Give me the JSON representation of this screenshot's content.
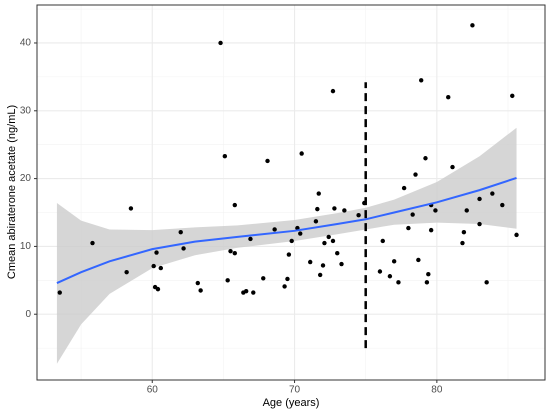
{
  "chart_data": {
    "type": "scatter",
    "x_label": "Age (years)",
    "y_label": "Cmean abiraterone acetate (ng/mL)",
    "xlim": [
      51.9,
      87.6
    ],
    "ylim": [
      -9.7,
      45.6
    ],
    "xticks": [
      60,
      70,
      80
    ],
    "yticks": [
      0,
      10,
      20,
      30,
      40
    ],
    "xminor": [
      55,
      65,
      75,
      85
    ],
    "yminor": [
      -5,
      5,
      15,
      25,
      35,
      45
    ],
    "grid": true,
    "point_color": "#000000",
    "x": [
      53.5,
      55.8,
      58.2,
      58.5,
      60.1,
      60.3,
      60.2,
      60.4,
      60.6,
      62.0,
      62.2,
      63.2,
      63.4,
      64.8,
      65.1,
      65.3,
      65.5,
      65.8,
      65.8,
      66.4,
      66.6,
      66.9,
      67.1,
      67.8,
      68.1,
      68.6,
      69.3,
      69.5,
      69.6,
      69.8,
      70.2,
      70.4,
      70.5,
      71.1,
      71.5,
      71.6,
      71.7,
      71.8,
      72.0,
      72.1,
      72.4,
      72.7,
      72.7,
      72.8,
      73.0,
      73.3,
      73.5,
      74.5,
      74.9,
      76.0,
      76.2,
      76.7,
      77.0,
      77.3,
      77.7,
      78.0,
      78.3,
      78.5,
      78.7,
      78.9,
      79.2,
      79.3,
      79.4,
      79.6,
      79.6,
      79.9,
      80.8,
      81.1,
      81.8,
      81.9,
      82.1,
      82.5,
      83.0,
      83.0,
      83.5,
      83.9,
      84.6,
      85.3,
      85.6
    ],
    "values": [
      3.2,
      10.5,
      6.2,
      15.6,
      7.1,
      9.1,
      4.0,
      3.7,
      6.8,
      12.1,
      9.7,
      4.6,
      3.5,
      40.0,
      23.3,
      5.0,
      9.3,
      9.0,
      16.1,
      3.2,
      3.4,
      11.1,
      3.2,
      5.3,
      22.6,
      12.5,
      4.1,
      5.2,
      8.8,
      10.8,
      12.7,
      11.9,
      23.7,
      7.7,
      13.7,
      15.5,
      17.8,
      5.8,
      7.2,
      10.5,
      11.4,
      10.8,
      32.9,
      15.6,
      9.0,
      7.4,
      15.3,
      14.6,
      16.4,
      6.3,
      10.8,
      5.6,
      7.8,
      4.7,
      18.6,
      12.7,
      14.7,
      20.6,
      8.0,
      34.5,
      23.0,
      4.7,
      5.9,
      12.4,
      16.1,
      15.3,
      32.0,
      21.7,
      10.5,
      12.1,
      15.3,
      42.6,
      13.3,
      17.0,
      4.7,
      17.8,
      16.1,
      32.2,
      11.7
    ],
    "fit": {
      "color": "#3366ff",
      "band_color": "#cccccc",
      "x": [
        53.3,
        55,
        57,
        60,
        63,
        66,
        70,
        73,
        75,
        77,
        80,
        83,
        85.6
      ],
      "values": [
        4.6,
        6.2,
        7.8,
        9.6,
        10.7,
        11.4,
        12.3,
        13.3,
        14.0,
        15.0,
        16.5,
        18.3,
        20.1
      ],
      "lower": [
        -7.3,
        -1.5,
        3,
        6.8,
        8.7,
        9.8,
        10.8,
        11.8,
        12.5,
        13.2,
        13.5,
        13.3,
        12.6
      ],
      "upper": [
        16.4,
        13.8,
        12.5,
        12.4,
        12.8,
        13.1,
        13.9,
        14.9,
        15.7,
        16.9,
        19.5,
        23.3,
        27.5
      ]
    },
    "vline": {
      "x": 75,
      "ymin": -5,
      "ymax": 34.2
    }
  }
}
